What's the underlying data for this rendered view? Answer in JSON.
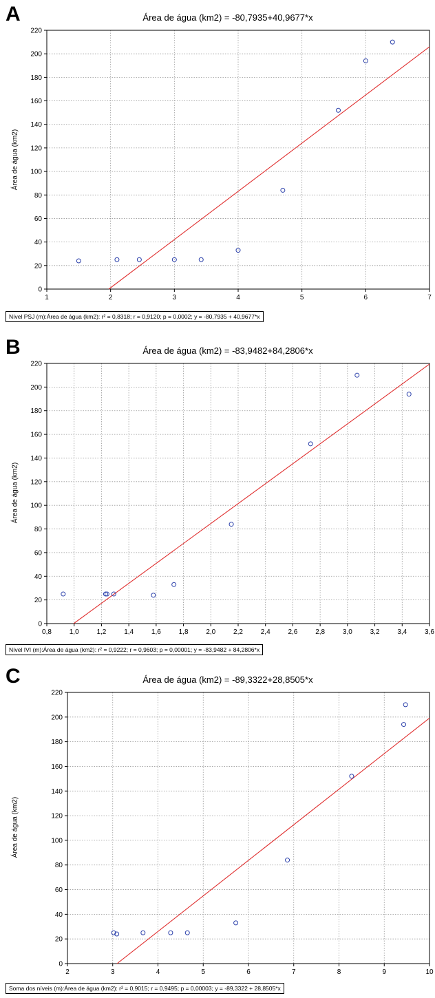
{
  "chart_data": [
    {
      "type": "scatter",
      "panel": "A",
      "title": "Área de água (km2) = -80,7935+40,9677*x",
      "ylabel": "Área de água (km2)",
      "xlim": [
        1,
        7
      ],
      "ylim": [
        0,
        220
      ],
      "xticks": [
        "1",
        "2",
        "3",
        "4",
        "5",
        "6",
        "7"
      ],
      "yticks": [
        "0",
        "20",
        "40",
        "60",
        "80",
        "100",
        "120",
        "140",
        "160",
        "180",
        "200",
        "220"
      ],
      "grid": true,
      "points": [
        {
          "x": 1.5,
          "y": 24
        },
        {
          "x": 2.1,
          "y": 25
        },
        {
          "x": 2.45,
          "y": 25
        },
        {
          "x": 3.0,
          "y": 25
        },
        {
          "x": 3.42,
          "y": 25
        },
        {
          "x": 4.0,
          "y": 33
        },
        {
          "x": 4.7,
          "y": 84
        },
        {
          "x": 5.57,
          "y": 152
        },
        {
          "x": 6.0,
          "y": 194
        },
        {
          "x": 6.42,
          "y": 210
        }
      ],
      "fit": {
        "intercept": -80.7935,
        "slope": 40.9677
      },
      "colors": {
        "points": "#2a3faa",
        "fit": "#e03030"
      },
      "footer": "Nível PSJ (m):Área de água (km2):  r² = 0,8318;  r = 0,9120; p = 0,0002;  y = -80,7935 + 40,9677*x"
    },
    {
      "type": "scatter",
      "panel": "B",
      "title": "Área de água (km2) = -83,9482+84,2806*x",
      "ylabel": "Área de água (km2)",
      "xlim": [
        0.8,
        3.6
      ],
      "ylim": [
        0,
        220
      ],
      "xticks": [
        "0,8",
        "1,0",
        "1,2",
        "1,4",
        "1,6",
        "1,8",
        "2,0",
        "2,2",
        "2,4",
        "2,6",
        "2,8",
        "3,0",
        "3,2",
        "3,4",
        "3,6"
      ],
      "yticks": [
        "0",
        "20",
        "40",
        "60",
        "80",
        "100",
        "120",
        "140",
        "160",
        "180",
        "200",
        "220"
      ],
      "grid": true,
      "points": [
        {
          "x": 0.92,
          "y": 25
        },
        {
          "x": 1.23,
          "y": 25
        },
        {
          "x": 1.24,
          "y": 25
        },
        {
          "x": 1.29,
          "y": 25
        },
        {
          "x": 1.58,
          "y": 24
        },
        {
          "x": 1.73,
          "y": 33
        },
        {
          "x": 2.15,
          "y": 84
        },
        {
          "x": 2.73,
          "y": 152
        },
        {
          "x": 3.07,
          "y": 210
        },
        {
          "x": 3.45,
          "y": 194
        }
      ],
      "fit": {
        "intercept": -83.9482,
        "slope": 84.2806
      },
      "colors": {
        "points": "#2a3faa",
        "fit": "#e03030"
      },
      "footer": "Nível IVI (m):Área de água (km2):  r² = 0,9222;  r = 0,9603; p = 0,00001;  y = -83,9482 + 84,2806*x"
    },
    {
      "type": "scatter",
      "panel": "C",
      "title": "Área de água (km2) = -89,3322+28,8505*x",
      "ylabel": "Área de água (km2)",
      "xlim": [
        2,
        10
      ],
      "ylim": [
        0,
        220
      ],
      "xticks": [
        "2",
        "3",
        "4",
        "5",
        "6",
        "7",
        "8",
        "9",
        "10"
      ],
      "yticks": [
        "0",
        "20",
        "40",
        "60",
        "80",
        "100",
        "120",
        "140",
        "160",
        "180",
        "200",
        "220"
      ],
      "grid": true,
      "points": [
        {
          "x": 3.02,
          "y": 25
        },
        {
          "x": 3.09,
          "y": 24
        },
        {
          "x": 3.67,
          "y": 25
        },
        {
          "x": 4.28,
          "y": 25
        },
        {
          "x": 4.65,
          "y": 25
        },
        {
          "x": 5.72,
          "y": 33
        },
        {
          "x": 6.86,
          "y": 84
        },
        {
          "x": 8.28,
          "y": 152
        },
        {
          "x": 9.43,
          "y": 194
        },
        {
          "x": 9.47,
          "y": 210
        }
      ],
      "fit": {
        "intercept": -89.3322,
        "slope": 28.8505
      },
      "colors": {
        "points": "#2a3faa",
        "fit": "#e03030"
      },
      "footer": "Soma dos níveis (m):Área de água (km2):  r² = 0,9015;  r = 0,9495; p = 0,00003;  y = -89,3322 + 28,8505*x"
    }
  ]
}
